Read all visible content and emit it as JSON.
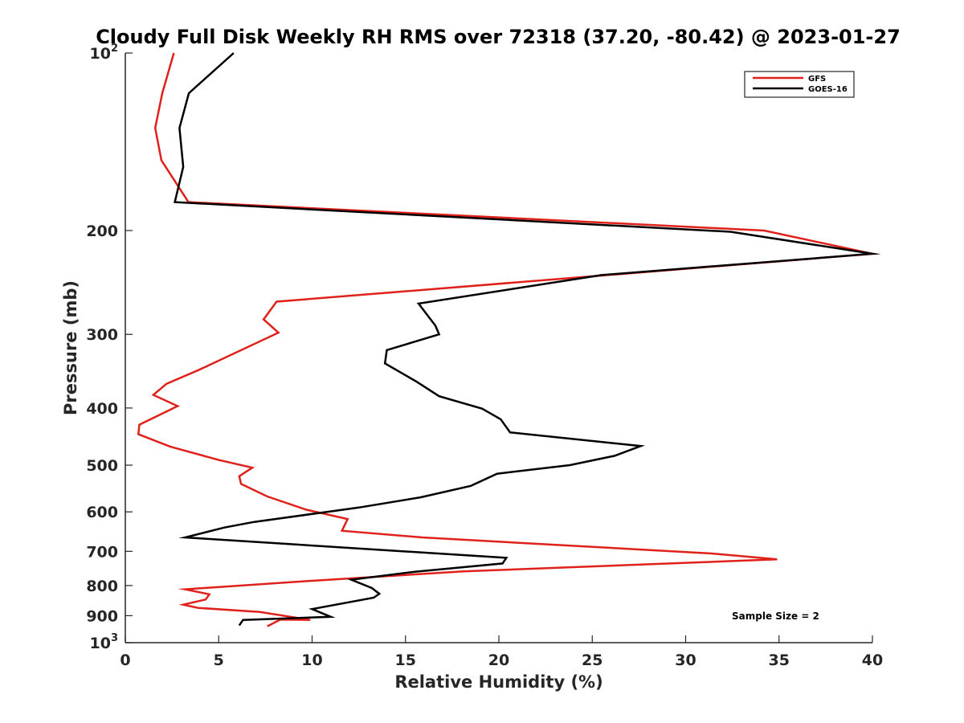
{
  "chart_data": {
    "type": "line",
    "title": "Cloudy Full Disk Weekly RH RMS over 72318 (37.20, -80.42) @ 2023-01-27",
    "xlabel": "Relative Humidity (%)",
    "ylabel": "Pressure (mb)",
    "xlim": [
      0,
      40
    ],
    "ylim": [
      100,
      1000
    ],
    "yscale": "log",
    "y_reversed": true,
    "grid": false,
    "legend_position": "top-right",
    "x_ticks": [
      {
        "value": 0,
        "label": "0"
      },
      {
        "value": 5,
        "label": "5"
      },
      {
        "value": 10,
        "label": "10"
      },
      {
        "value": 15,
        "label": "15"
      },
      {
        "value": 20,
        "label": "20"
      },
      {
        "value": 25,
        "label": "25"
      },
      {
        "value": 30,
        "label": "30"
      },
      {
        "value": 35,
        "label": "35"
      },
      {
        "value": 40,
        "label": "40"
      }
    ],
    "y_ticks": [
      {
        "value": 100,
        "label": "10",
        "sup": "2"
      },
      {
        "value": 200,
        "label": "200",
        "sup": ""
      },
      {
        "value": 300,
        "label": "300",
        "sup": ""
      },
      {
        "value": 400,
        "label": "400",
        "sup": ""
      },
      {
        "value": 500,
        "label": "500",
        "sup": ""
      },
      {
        "value": 600,
        "label": "600",
        "sup": ""
      },
      {
        "value": 700,
        "label": "700",
        "sup": ""
      },
      {
        "value": 800,
        "label": "800",
        "sup": ""
      },
      {
        "value": 900,
        "label": "900",
        "sup": ""
      },
      {
        "value": 1000,
        "label": "10",
        "sup": "3"
      }
    ],
    "series": [
      {
        "name": "GFS",
        "color": "#e0211b",
        "points": [
          [
            2.6,
            100
          ],
          [
            1.98,
            117
          ],
          [
            1.6,
            134
          ],
          [
            1.93,
            152
          ],
          [
            3.38,
            179
          ],
          [
            34.2,
            200
          ],
          [
            40.0,
            219
          ],
          [
            8.1,
            264
          ],
          [
            7.4,
            283
          ],
          [
            8.2,
            298
          ],
          [
            4.0,
            344
          ],
          [
            2.2,
            364
          ],
          [
            1.5,
            380
          ],
          [
            2.8,
            397
          ],
          [
            0.75,
            427
          ],
          [
            0.7,
            443
          ],
          [
            2.4,
            465
          ],
          [
            5.0,
            490
          ],
          [
            6.8,
            505
          ],
          [
            6.1,
            522
          ],
          [
            6.2,
            538
          ],
          [
            7.6,
            565
          ],
          [
            9.7,
            595
          ],
          [
            11.9,
            617
          ],
          [
            11.6,
            646
          ],
          [
            15.9,
            663
          ],
          [
            31.4,
            706
          ],
          [
            34.9,
            722
          ],
          [
            18.1,
            757
          ],
          [
            9.8,
            786
          ],
          [
            3.2,
            812
          ],
          [
            4.5,
            828
          ],
          [
            4.3,
            845
          ],
          [
            3.1,
            862
          ],
          [
            3.9,
            873
          ],
          [
            7.2,
            887
          ],
          [
            9.9,
            915
          ],
          [
            8.3,
            914
          ],
          [
            7.6,
            938
          ]
        ]
      },
      {
        "name": "GOES-16",
        "color": "#000000",
        "points": [
          [
            5.8,
            100
          ],
          [
            3.4,
            117
          ],
          [
            2.9,
            134
          ],
          [
            3.1,
            156
          ],
          [
            2.65,
            179
          ],
          [
            32.4,
            201
          ],
          [
            40.0,
            219
          ],
          [
            25.5,
            238
          ],
          [
            15.7,
            266
          ],
          [
            16.6,
            290
          ],
          [
            16.8,
            300
          ],
          [
            14.0,
            319
          ],
          [
            13.9,
            336
          ],
          [
            15.6,
            361
          ],
          [
            16.8,
            382
          ],
          [
            19.1,
            401
          ],
          [
            20.1,
            418
          ],
          [
            20.6,
            440
          ],
          [
            27.6,
            464
          ],
          [
            26.2,
            482
          ],
          [
            23.8,
            500
          ],
          [
            19.9,
            517
          ],
          [
            18.5,
            542
          ],
          [
            15.8,
            567
          ],
          [
            12.5,
            590
          ],
          [
            6.9,
            624
          ],
          [
            5.3,
            638
          ],
          [
            3.2,
            663
          ],
          [
            20.4,
            718
          ],
          [
            20.2,
            734
          ],
          [
            15.5,
            758
          ],
          [
            12.1,
            782
          ],
          [
            13.2,
            808
          ],
          [
            13.6,
            826
          ],
          [
            13.3,
            839
          ],
          [
            10.0,
            877
          ],
          [
            11.0,
            904
          ],
          [
            6.3,
            915
          ],
          [
            6.1,
            935
          ]
        ]
      }
    ],
    "annotations": [
      "Sample Size = 2"
    ]
  }
}
